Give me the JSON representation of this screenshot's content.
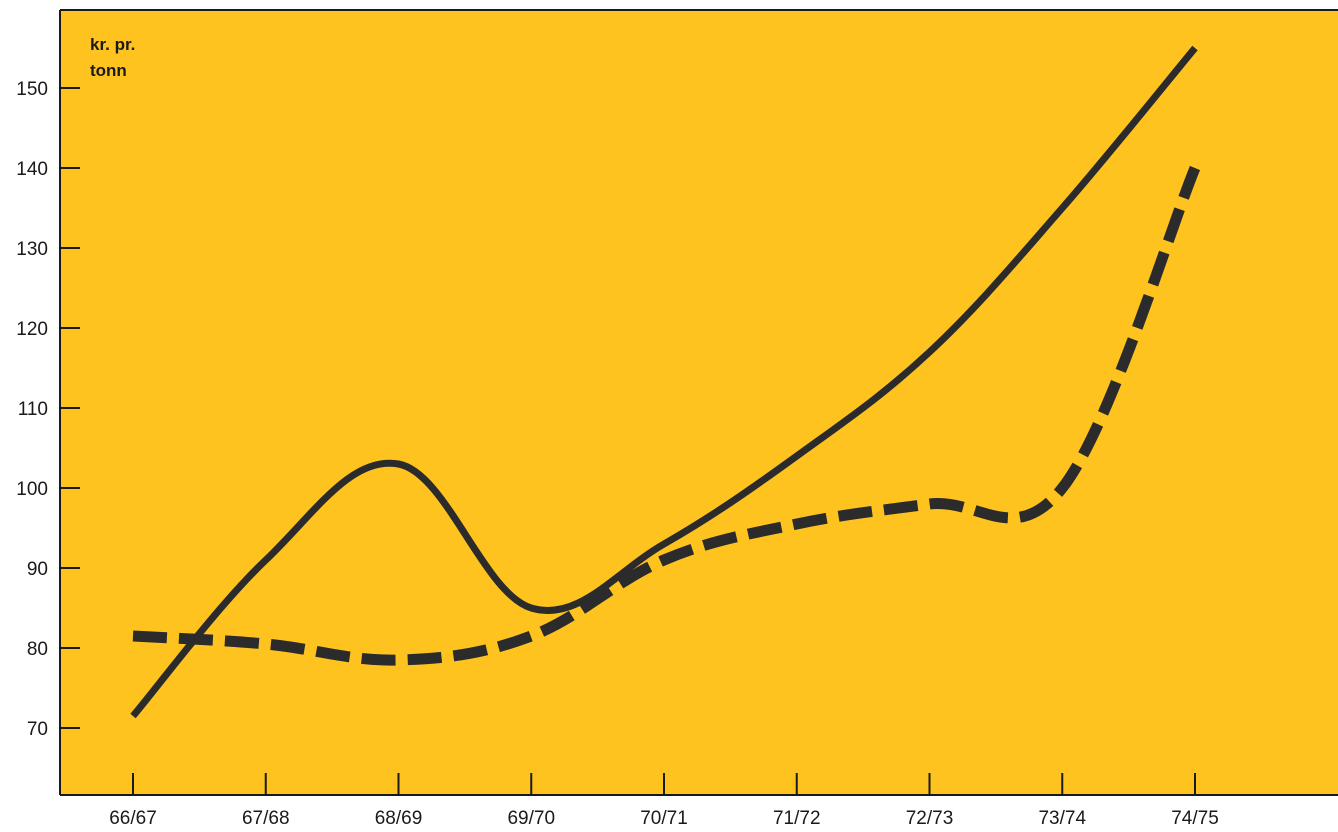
{
  "chart_data": {
    "type": "line",
    "title": "",
    "xlabel": "",
    "ylabel": "kr. pr. tonn",
    "ylabel_lines": [
      "kr. pr.",
      "tonn"
    ],
    "categories": [
      "66/67",
      "67/68",
      "68/69",
      "69/70",
      "70/71",
      "71/72",
      "72/73",
      "73/74",
      "74/75"
    ],
    "ylim": [
      60,
      160
    ],
    "yticks": [
      70,
      80,
      90,
      100,
      110,
      120,
      130,
      140,
      150
    ],
    "grid": false,
    "legend": "none",
    "series": [
      {
        "style": "solid",
        "values": [
          71.5,
          91,
          103,
          85,
          93,
          104,
          117,
          135,
          155
        ]
      },
      {
        "style": "dashed",
        "values": [
          81.5,
          80.5,
          78.5,
          81.5,
          91,
          95.5,
          98,
          100,
          140
        ]
      }
    ],
    "colors": {
      "background": "#FFC31F",
      "line": "#2b2b2b",
      "axis": "#1a1a1a"
    }
  }
}
